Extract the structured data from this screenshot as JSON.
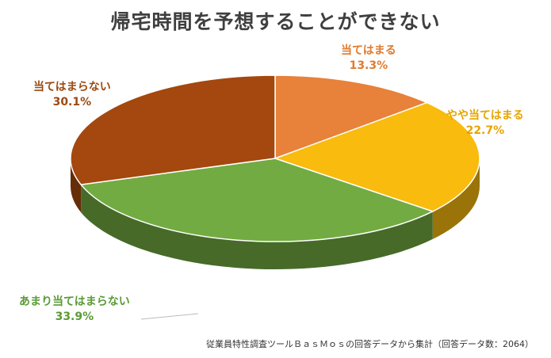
{
  "chart_data": {
    "type": "pie",
    "title": "帰宅時間を予想することができない",
    "slices": [
      {
        "label": "当てはまる",
        "value": 13.3,
        "value_label": "13.3%",
        "color": "#e8813a"
      },
      {
        "label": "やや当てはまる",
        "value": 22.7,
        "value_label": "22.7%",
        "color": "#f8bb0e"
      },
      {
        "label": "あまり当てはまらない",
        "value": 33.9,
        "value_label": "33.9%",
        "color": "#72ab42"
      },
      {
        "label": "当てはまらない",
        "value": 30.1,
        "value_label": "30.1%",
        "color": "#a4480f"
      }
    ],
    "style": "3d-tilted",
    "legend": "none"
  },
  "source_note": "従業員特性調査ツールＢａｓＭｏｓの回答データから集計（回答データ数：2064）"
}
